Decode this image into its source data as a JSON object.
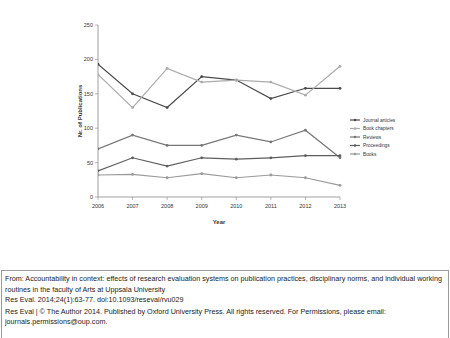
{
  "chart_data": {
    "type": "line",
    "x_label": "Year",
    "y_label": "Nr. of Publications",
    "x": [
      2006,
      2007,
      2008,
      2009,
      2010,
      2011,
      2012,
      2013
    ],
    "xlim": [
      2006,
      2013
    ],
    "xticks": [
      2006,
      2007,
      2008,
      2009,
      2010,
      2011,
      2012,
      2013
    ],
    "ylim": [
      0,
      250
    ],
    "yticks": [
      0,
      50,
      100,
      150,
      200,
      250
    ],
    "grid": false,
    "legend": "right",
    "marker": "circle",
    "series": [
      {
        "name": "Journal articles",
        "color": "#4a4a4a",
        "values": [
          193,
          150,
          130,
          175,
          170,
          143,
          158,
          158
        ]
      },
      {
        "name": "Book chapters",
        "color": "#ababab",
        "values": [
          178,
          130,
          187,
          167,
          170,
          167,
          148,
          190
        ]
      },
      {
        "name": "Reviews",
        "color": "#777777",
        "values": [
          70,
          90,
          75,
          75,
          90,
          80,
          97,
          57
        ]
      },
      {
        "name": "Proceedings",
        "color": "#5e5e5e",
        "values": [
          38,
          57,
          45,
          57,
          55,
          57,
          60,
          60
        ]
      },
      {
        "name": "Books",
        "color": "#9a9a9a",
        "values": [
          32,
          33,
          28,
          34,
          28,
          32,
          28,
          17
        ]
      }
    ]
  },
  "caption": {
    "source": "From: Accountability in context: effects of research evaluation systems on publication practices, disciplinary norms, and individual working routines in the faculty of Arts at Uppsala University",
    "citation": "Res Eval. 2014;24(1):63-77. doi:10.1093/reseval/rvu029",
    "copyright": "Res Eval | © The Author 2014. Published by Oxford University Press. All rights reserved. For Permissions, please email: journals.permissions@oup.com."
  }
}
